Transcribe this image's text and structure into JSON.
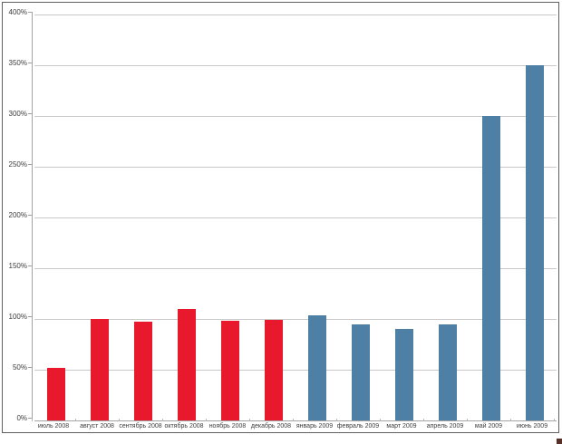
{
  "page": {
    "background_color": "#ffffff",
    "frame_border_color": "#5f5f5f"
  },
  "chart_data": {
    "type": "bar",
    "title": "",
    "xlabel": "",
    "ylabel": "",
    "categories": [
      "июль 2008",
      "август 2008",
      "сентябрь 2008",
      "октябрь 2008",
      "ноябрь 2008",
      "декабрь 2008",
      "январь 2009",
      "февраль 2009",
      "март 2009",
      "апрель 2009",
      "май 2009",
      "июнь 2009"
    ],
    "values": [
      52,
      100,
      97,
      110,
      98,
      99,
      104,
      95,
      90,
      95,
      300,
      350
    ],
    "bar_color_keys": [
      "red",
      "red",
      "red",
      "red",
      "red",
      "red",
      "blue",
      "blue",
      "blue",
      "blue",
      "blue",
      "blue"
    ],
    "colors": {
      "red": "#e8192d",
      "blue": "#4e80a6"
    },
    "ylim": [
      0,
      400
    ],
    "ytick_labels": [
      "0%",
      "50%",
      "100%",
      "150%",
      "200%",
      "250%",
      "300%",
      "350%",
      "400%"
    ],
    "grid": true,
    "legend_position": "none",
    "gridline_color": "#c9c9c9",
    "axis_color": "#a3a3a3",
    "label_color": "#3d3d3d"
  },
  "artifact": {
    "color": "#57302a"
  }
}
